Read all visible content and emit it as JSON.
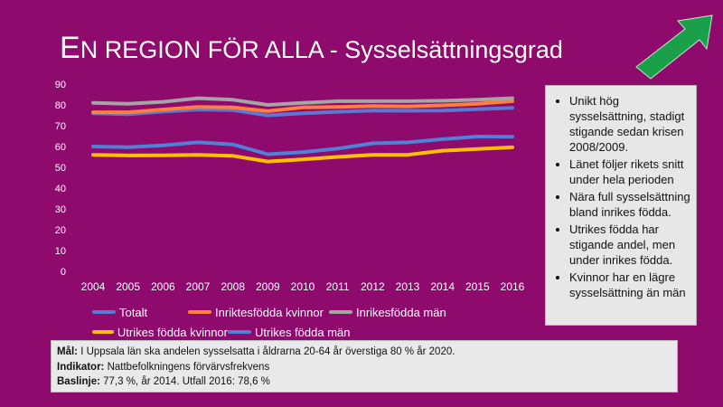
{
  "slide": {
    "title_first_letter": "E",
    "title_rest": "N REGION FÖR ALLA - Sysselsättningsgrad",
    "arrow_color": "#1aa04a"
  },
  "chart_data": {
    "type": "line",
    "title": "",
    "xlabel": "",
    "ylabel": "",
    "x": [
      "2004",
      "2005",
      "2006",
      "2007",
      "2008",
      "2009",
      "2010",
      "2011",
      "2012",
      "2013",
      "2014",
      "2015",
      "2016"
    ],
    "ylim": [
      0,
      90
    ],
    "yticks": [
      0,
      10,
      20,
      30,
      40,
      50,
      60,
      70,
      80,
      90
    ],
    "grid": false,
    "legend_position": "bottom",
    "series": [
      {
        "name": "Totalt",
        "color": "#5b79d4",
        "values": [
          76.0,
          75.5,
          76.8,
          77.8,
          77.5,
          75.0,
          76.0,
          76.7,
          77.3,
          77.2,
          77.3,
          77.9,
          78.6
        ]
      },
      {
        "name": "Inriktesfödda kvinnor",
        "color": "#ff7f3f",
        "values": [
          76.5,
          76.5,
          77.8,
          79.0,
          78.8,
          77.0,
          78.8,
          79.0,
          79.5,
          79.3,
          79.8,
          80.5,
          81.8
        ]
      },
      {
        "name": "Inrikesfödda män",
        "color": "#a5a5a5",
        "values": [
          81.0,
          80.5,
          81.5,
          83.2,
          82.5,
          80.0,
          81.0,
          81.8,
          81.8,
          81.8,
          82.0,
          82.5,
          83.2
        ]
      },
      {
        "name": "Utrikes födda kvinnor",
        "color": "#ffc000",
        "values": [
          56.0,
          55.7,
          55.8,
          56.0,
          55.5,
          52.8,
          53.8,
          55.0,
          56.0,
          56.0,
          58.0,
          58.8,
          59.6
        ]
      },
      {
        "name": "Utrikes födda män",
        "color": "#4f81d6",
        "values": [
          60.0,
          59.7,
          60.5,
          62.0,
          61.0,
          56.3,
          57.3,
          59.0,
          61.5,
          62.0,
          63.5,
          64.8,
          64.7
        ]
      }
    ]
  },
  "bullets": [
    "Unikt hög sysselsättning, stadigt stigande sedan krisen 2008/2009.",
    "Länet följer rikets snitt under hela perioden",
    "Nära full sysselsättning bland inrikes födda.",
    "Utrikes födda har stigande andel, men under inrikes födda.",
    "Kvinnor har en lägre sysselsättning än män"
  ],
  "goal": {
    "mal_label": "Mål:",
    "mal_text": " I Uppsala län ska andelen sysselsatta i åldrarna 20-64 år överstiga 80 % år 2020.",
    "indikator_label": "Indikator:",
    "indikator_text": " Nattbefolkningens förvärvsfrekvens",
    "baslinje_label": "Baslinje:",
    "baslinje_text": " 77,3 %, år 2014. Utfall 2016: 78,6 %"
  }
}
